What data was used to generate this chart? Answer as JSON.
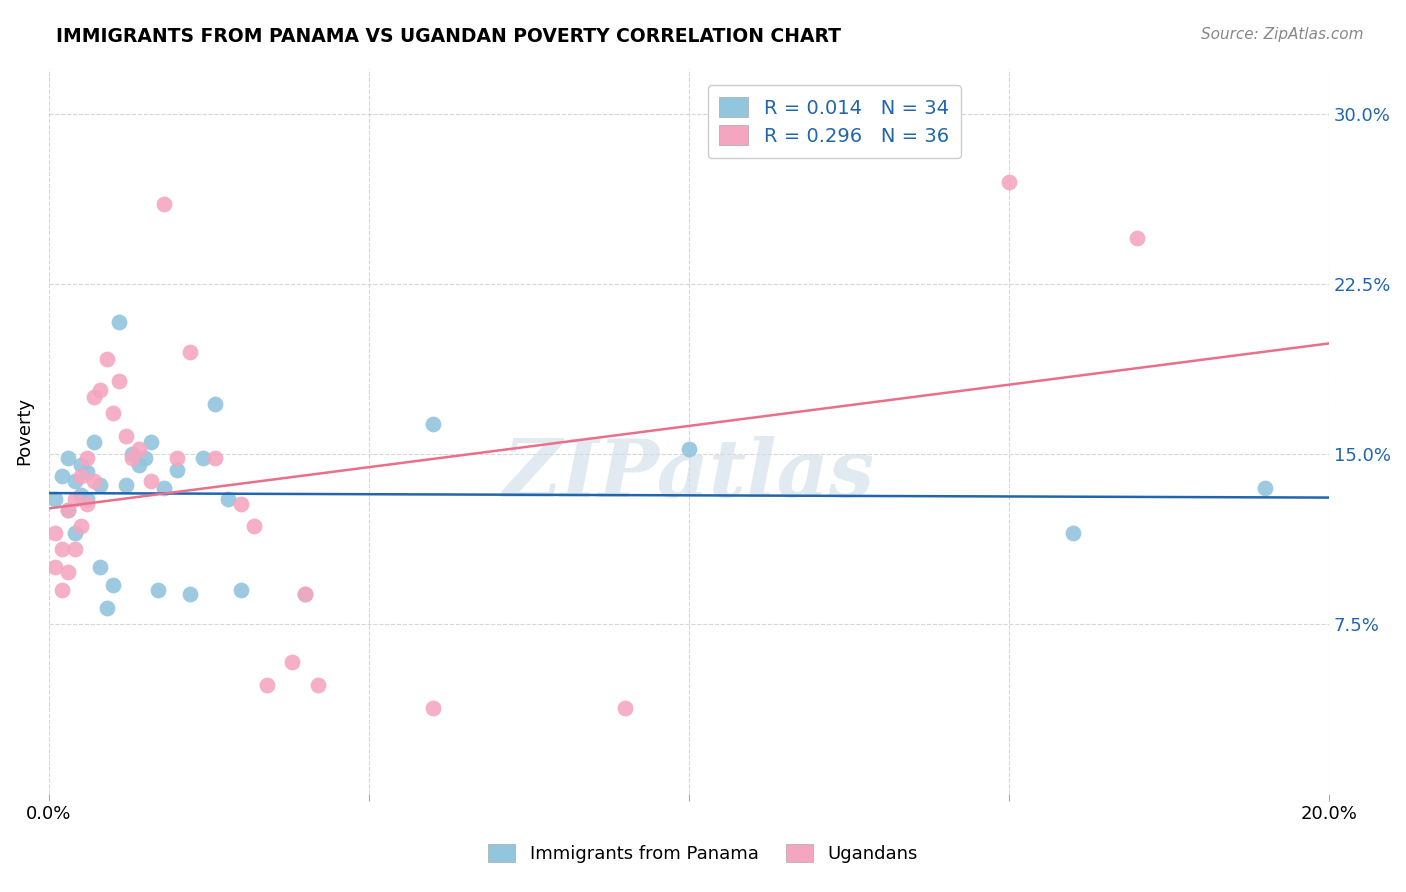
{
  "title": "IMMIGRANTS FROM PANAMA VS UGANDAN POVERTY CORRELATION CHART",
  "source": "Source: ZipAtlas.com",
  "ylabel": "Poverty",
  "xlim": [
    0.0,
    0.2
  ],
  "ylim": [
    0.0,
    0.32
  ],
  "ytick_vals": [
    0.075,
    0.15,
    0.225,
    0.3
  ],
  "ytick_labels": [
    "7.5%",
    "15.0%",
    "22.5%",
    "30.0%"
  ],
  "xtick_vals": [
    0.0,
    0.05,
    0.1,
    0.15,
    0.2
  ],
  "xtick_labels": [
    "0.0%",
    "",
    "",
    "",
    "20.0%"
  ],
  "watermark": "ZIPatlas",
  "legend_line1": "R = 0.014   N = 34",
  "legend_line2": "R = 0.296   N = 36",
  "label1": "Immigrants from Panama",
  "label2": "Ugandans",
  "color1": "#92c5de",
  "color2": "#f4a6c0",
  "line_color1": "#2166ac",
  "line_color2": "#e8708a",
  "panama_x": [
    0.001,
    0.002,
    0.003,
    0.003,
    0.004,
    0.004,
    0.005,
    0.005,
    0.006,
    0.006,
    0.007,
    0.008,
    0.008,
    0.009,
    0.01,
    0.011,
    0.012,
    0.013,
    0.014,
    0.015,
    0.016,
    0.017,
    0.018,
    0.02,
    0.022,
    0.024,
    0.026,
    0.028,
    0.03,
    0.04,
    0.06,
    0.1,
    0.16,
    0.19
  ],
  "panama_y": [
    0.13,
    0.14,
    0.148,
    0.125,
    0.138,
    0.115,
    0.132,
    0.145,
    0.142,
    0.13,
    0.155,
    0.1,
    0.136,
    0.082,
    0.092,
    0.208,
    0.136,
    0.15,
    0.145,
    0.148,
    0.155,
    0.09,
    0.135,
    0.143,
    0.088,
    0.148,
    0.172,
    0.13,
    0.09,
    0.088,
    0.163,
    0.152,
    0.115,
    0.135
  ],
  "ugandan_x": [
    0.001,
    0.001,
    0.002,
    0.002,
    0.003,
    0.003,
    0.004,
    0.004,
    0.005,
    0.005,
    0.006,
    0.006,
    0.007,
    0.007,
    0.008,
    0.009,
    0.01,
    0.011,
    0.012,
    0.013,
    0.014,
    0.016,
    0.018,
    0.02,
    0.022,
    0.026,
    0.03,
    0.032,
    0.034,
    0.038,
    0.04,
    0.042,
    0.06,
    0.09,
    0.15,
    0.17
  ],
  "ugandan_y": [
    0.115,
    0.1,
    0.108,
    0.09,
    0.125,
    0.098,
    0.13,
    0.108,
    0.14,
    0.118,
    0.148,
    0.128,
    0.138,
    0.175,
    0.178,
    0.192,
    0.168,
    0.182,
    0.158,
    0.148,
    0.152,
    0.138,
    0.26,
    0.148,
    0.195,
    0.148,
    0.128,
    0.118,
    0.048,
    0.058,
    0.088,
    0.048,
    0.038,
    0.038,
    0.27,
    0.245
  ]
}
